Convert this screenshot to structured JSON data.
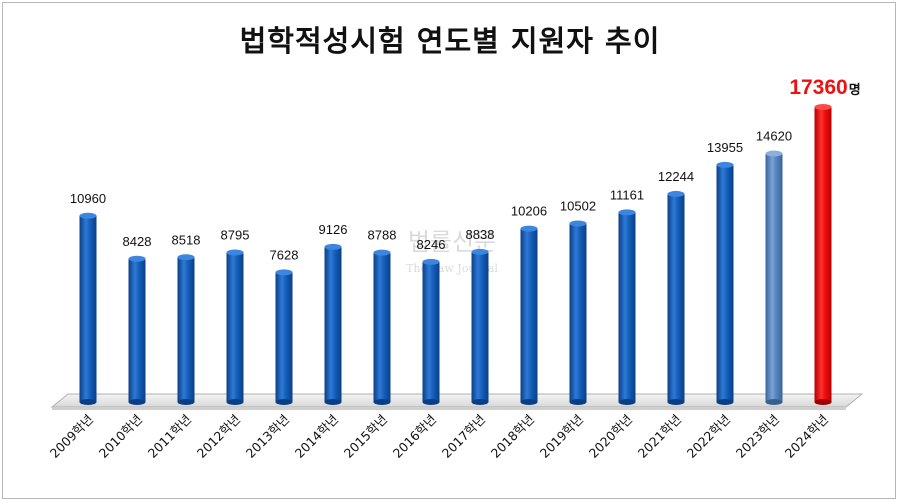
{
  "chart_data": {
    "type": "bar",
    "title": "법학적성시험 연도별 지원자 추이",
    "categories": [
      "2009학년",
      "2010학년",
      "2011학년",
      "2012학년",
      "2013학년",
      "2014학년",
      "2015학년",
      "2016학년",
      "2017학년",
      "2018학년",
      "2019학년",
      "2020학년",
      "2021학년",
      "2022학년",
      "2023학년",
      "2024학년"
    ],
    "values": [
      10960,
      8428,
      8518,
      8795,
      7628,
      9126,
      8788,
      8246,
      8838,
      10206,
      10502,
      11161,
      12244,
      13955,
      14620,
      17360
    ],
    "unit": "명",
    "ylim": [
      0,
      18000
    ],
    "grid": false,
    "colors": {
      "bar": "#1560bd",
      "bar_2023": "#4f81bd",
      "highlight": "#ee1111"
    }
  },
  "watermark": {
    "text": "법률신문",
    "subtext": "The Law Journal"
  }
}
